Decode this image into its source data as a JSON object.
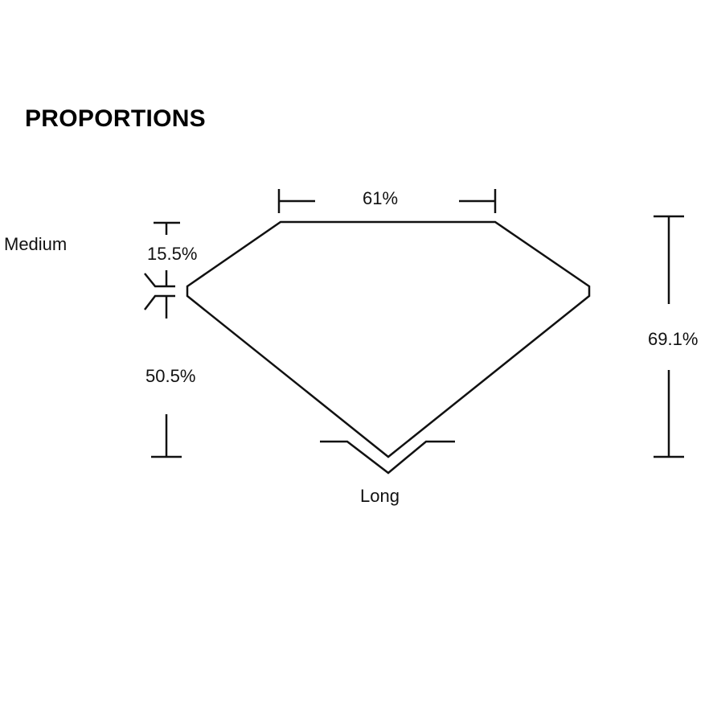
{
  "title": "PROPORTIONS",
  "labels": {
    "table": "61%",
    "crown_height": "15.5%",
    "pavilion_depth": "50.5%",
    "total_depth": "69.1%",
    "girdle": "Medium",
    "culet": "Long"
  }
}
